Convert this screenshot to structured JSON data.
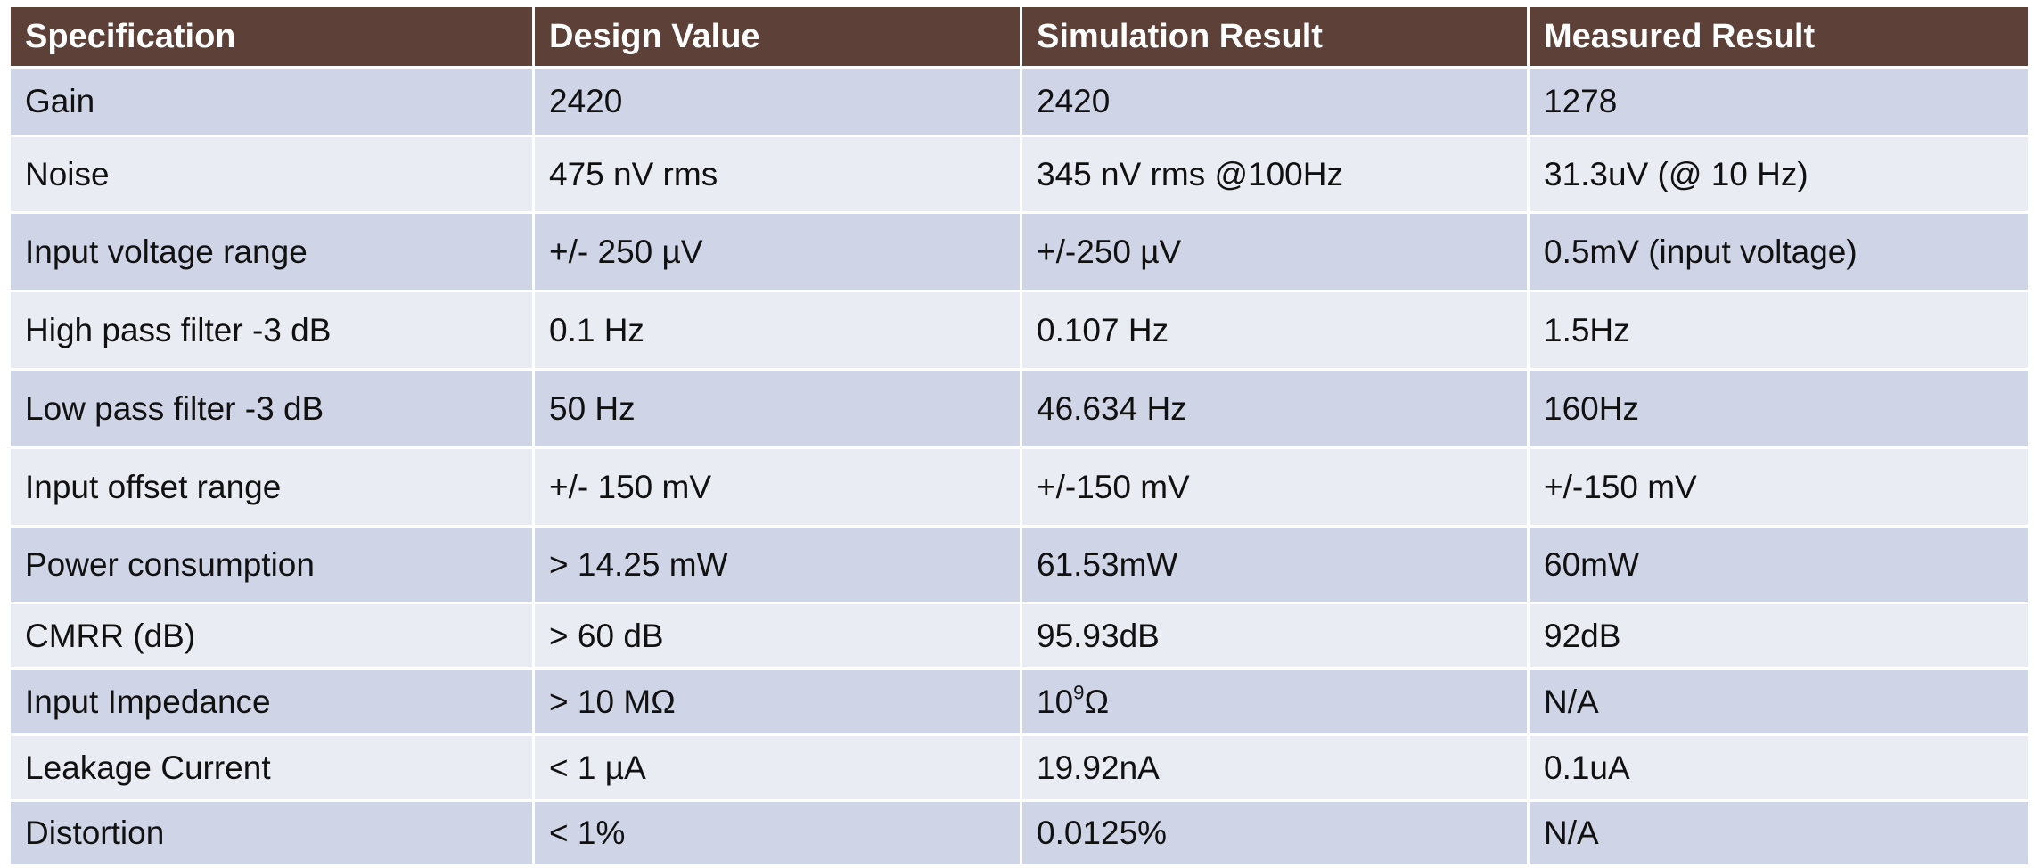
{
  "table": {
    "headers": [
      "Specification",
      "Design Value",
      "Simulation Result",
      "Measured Result"
    ],
    "rows": [
      {
        "spec": "Gain",
        "design": "2420",
        "simulation": "2420",
        "measured": "1278"
      },
      {
        "spec": "Noise",
        "design": "475 nV rms",
        "simulation": "345 nV rms @100Hz",
        "measured": "31.3uV (@ 10 Hz)"
      },
      {
        "spec": "Input voltage range",
        "design": "+/- 250 µV",
        "simulation": "+/-250 µV",
        "measured": "0.5mV (input voltage)"
      },
      {
        "spec": "High pass filter -3 dB",
        "design": "0.1 Hz",
        "simulation": "0.107 Hz",
        "measured": "1.5Hz"
      },
      {
        "spec": "Low pass filter -3 dB",
        "design": "50 Hz",
        "simulation": "46.634 Hz",
        "measured": "160Hz"
      },
      {
        "spec": "Input offset range",
        "design": "+/- 150 mV",
        "simulation": "+/-150 mV",
        "measured": "+/-150 mV"
      },
      {
        "spec": "Power consumption",
        "design": "> 14.25 mW",
        "simulation": "61.53mW",
        "measured": "60mW"
      },
      {
        "spec": "CMRR (dB)",
        "design": "> 60 dB",
        "simulation": "95.93dB",
        "measured": "92dB"
      },
      {
        "spec": "Input Impedance",
        "design": "> 10 MΩ",
        "simulation_base": "10",
        "simulation_exp": "9",
        "simulation_unit": "Ω",
        "measured": "N/A"
      },
      {
        "spec": "Leakage Current",
        "design": "< 1 µA",
        "simulation": "19.92nA",
        "measured": "0.1uA"
      },
      {
        "spec": "Distortion",
        "design": "< 1%",
        "simulation": "0.0125%",
        "measured": "N/A"
      }
    ]
  },
  "colors": {
    "header_bg": "#5d4037",
    "row_odd_bg": "#cfd5e6",
    "row_even_bg": "#e9ecf3"
  }
}
